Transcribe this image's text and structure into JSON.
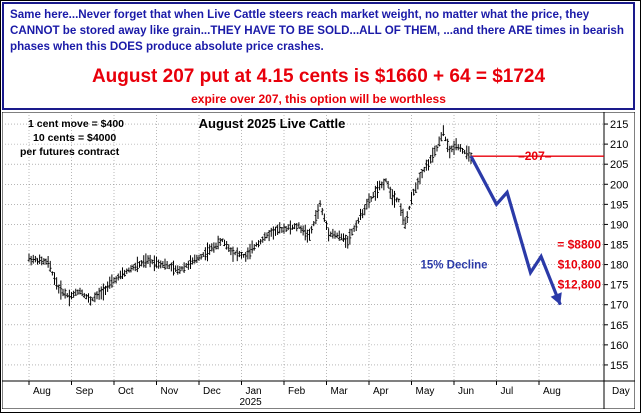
{
  "banner": {
    "text": "Same here...Never forget that when Live Cattle steers reach market weight, no matter what the price, they CANNOT be stored away like grain...THEY HAVE TO BE SOLD...ALL OF THEM, ...and there ARE times in bearish phases when this DOES produce absolute price crashes.",
    "headline": "August 207 put at 4.15 cents is $1660 + 64 = $1724",
    "subline": "expire over 207, this option will be worthless"
  },
  "colors": {
    "banner_text": "#1a1aa8",
    "alert_red": "#e8000b",
    "projection_blue": "#2b3aa8",
    "bars": "#000000"
  },
  "chart_data": {
    "type": "bar",
    "subtype": "ohlc-price-bars",
    "title": "August 2025 Live Cattle",
    "notes": [
      "1 cent move = $400",
      "10 cents = $4000",
      "per futures contract"
    ],
    "y_ticks": [
      155,
      160,
      165,
      170,
      175,
      180,
      185,
      190,
      195,
      200,
      205,
      210,
      215
    ],
    "ylim": [
      151,
      218
    ],
    "x_months": [
      "Aug",
      "Sep",
      "Oct",
      "Nov",
      "Dec",
      "Jan",
      "Feb",
      "Mar",
      "Apr",
      "May",
      "Jun",
      "Jul",
      "Aug"
    ],
    "x_year_label": "2025",
    "x_unit_label": "Day",
    "grid": true,
    "price_path": [
      {
        "m": 0.0,
        "v": 181.5
      },
      {
        "m": 0.45,
        "v": 180.5
      },
      {
        "m": 0.7,
        "v": 174
      },
      {
        "m": 0.95,
        "v": 172
      },
      {
        "m": 1.2,
        "v": 173.5
      },
      {
        "m": 1.45,
        "v": 171
      },
      {
        "m": 1.7,
        "v": 173
      },
      {
        "m": 2.0,
        "v": 176
      },
      {
        "m": 2.4,
        "v": 179
      },
      {
        "m": 2.8,
        "v": 181
      },
      {
        "m": 3.2,
        "v": 180
      },
      {
        "m": 3.5,
        "v": 178.5
      },
      {
        "m": 3.9,
        "v": 181
      },
      {
        "m": 4.3,
        "v": 184
      },
      {
        "m": 4.55,
        "v": 186
      },
      {
        "m": 4.8,
        "v": 183
      },
      {
        "m": 5.1,
        "v": 182
      },
      {
        "m": 5.35,
        "v": 185
      },
      {
        "m": 5.7,
        "v": 188
      },
      {
        "m": 6.0,
        "v": 189
      },
      {
        "m": 6.35,
        "v": 189.5
      },
      {
        "m": 6.6,
        "v": 187
      },
      {
        "m": 6.85,
        "v": 195
      },
      {
        "m": 7.05,
        "v": 188
      },
      {
        "m": 7.3,
        "v": 187
      },
      {
        "m": 7.5,
        "v": 186
      },
      {
        "m": 7.7,
        "v": 190
      },
      {
        "m": 7.9,
        "v": 194
      },
      {
        "m": 8.15,
        "v": 198
      },
      {
        "m": 8.4,
        "v": 201
      },
      {
        "m": 8.55,
        "v": 197
      },
      {
        "m": 8.7,
        "v": 196
      },
      {
        "m": 8.85,
        "v": 190
      },
      {
        "m": 9.05,
        "v": 198
      },
      {
        "m": 9.25,
        "v": 203
      },
      {
        "m": 9.45,
        "v": 206
      },
      {
        "m": 9.6,
        "v": 209
      },
      {
        "m": 9.75,
        "v": 213
      },
      {
        "m": 9.9,
        "v": 208
      },
      {
        "m": 10.05,
        "v": 210
      },
      {
        "m": 10.25,
        "v": 208
      },
      {
        "m": 10.4,
        "v": 207
      }
    ],
    "reference_line": {
      "value": 207,
      "label": "207"
    },
    "projection": {
      "label": "15% Decline",
      "points": [
        {
          "m": 10.4,
          "v": 207
        },
        {
          "m": 11.0,
          "v": 195
        },
        {
          "m": 11.25,
          "v": 198
        },
        {
          "m": 11.8,
          "v": 178
        },
        {
          "m": 12.05,
          "v": 182
        },
        {
          "m": 12.5,
          "v": 170
        }
      ]
    },
    "loss_levels": [
      {
        "value": 185,
        "label": "= $8800"
      },
      {
        "value": 180,
        "label": "$10,800"
      },
      {
        "value": 175,
        "label": "$12,800"
      }
    ]
  }
}
